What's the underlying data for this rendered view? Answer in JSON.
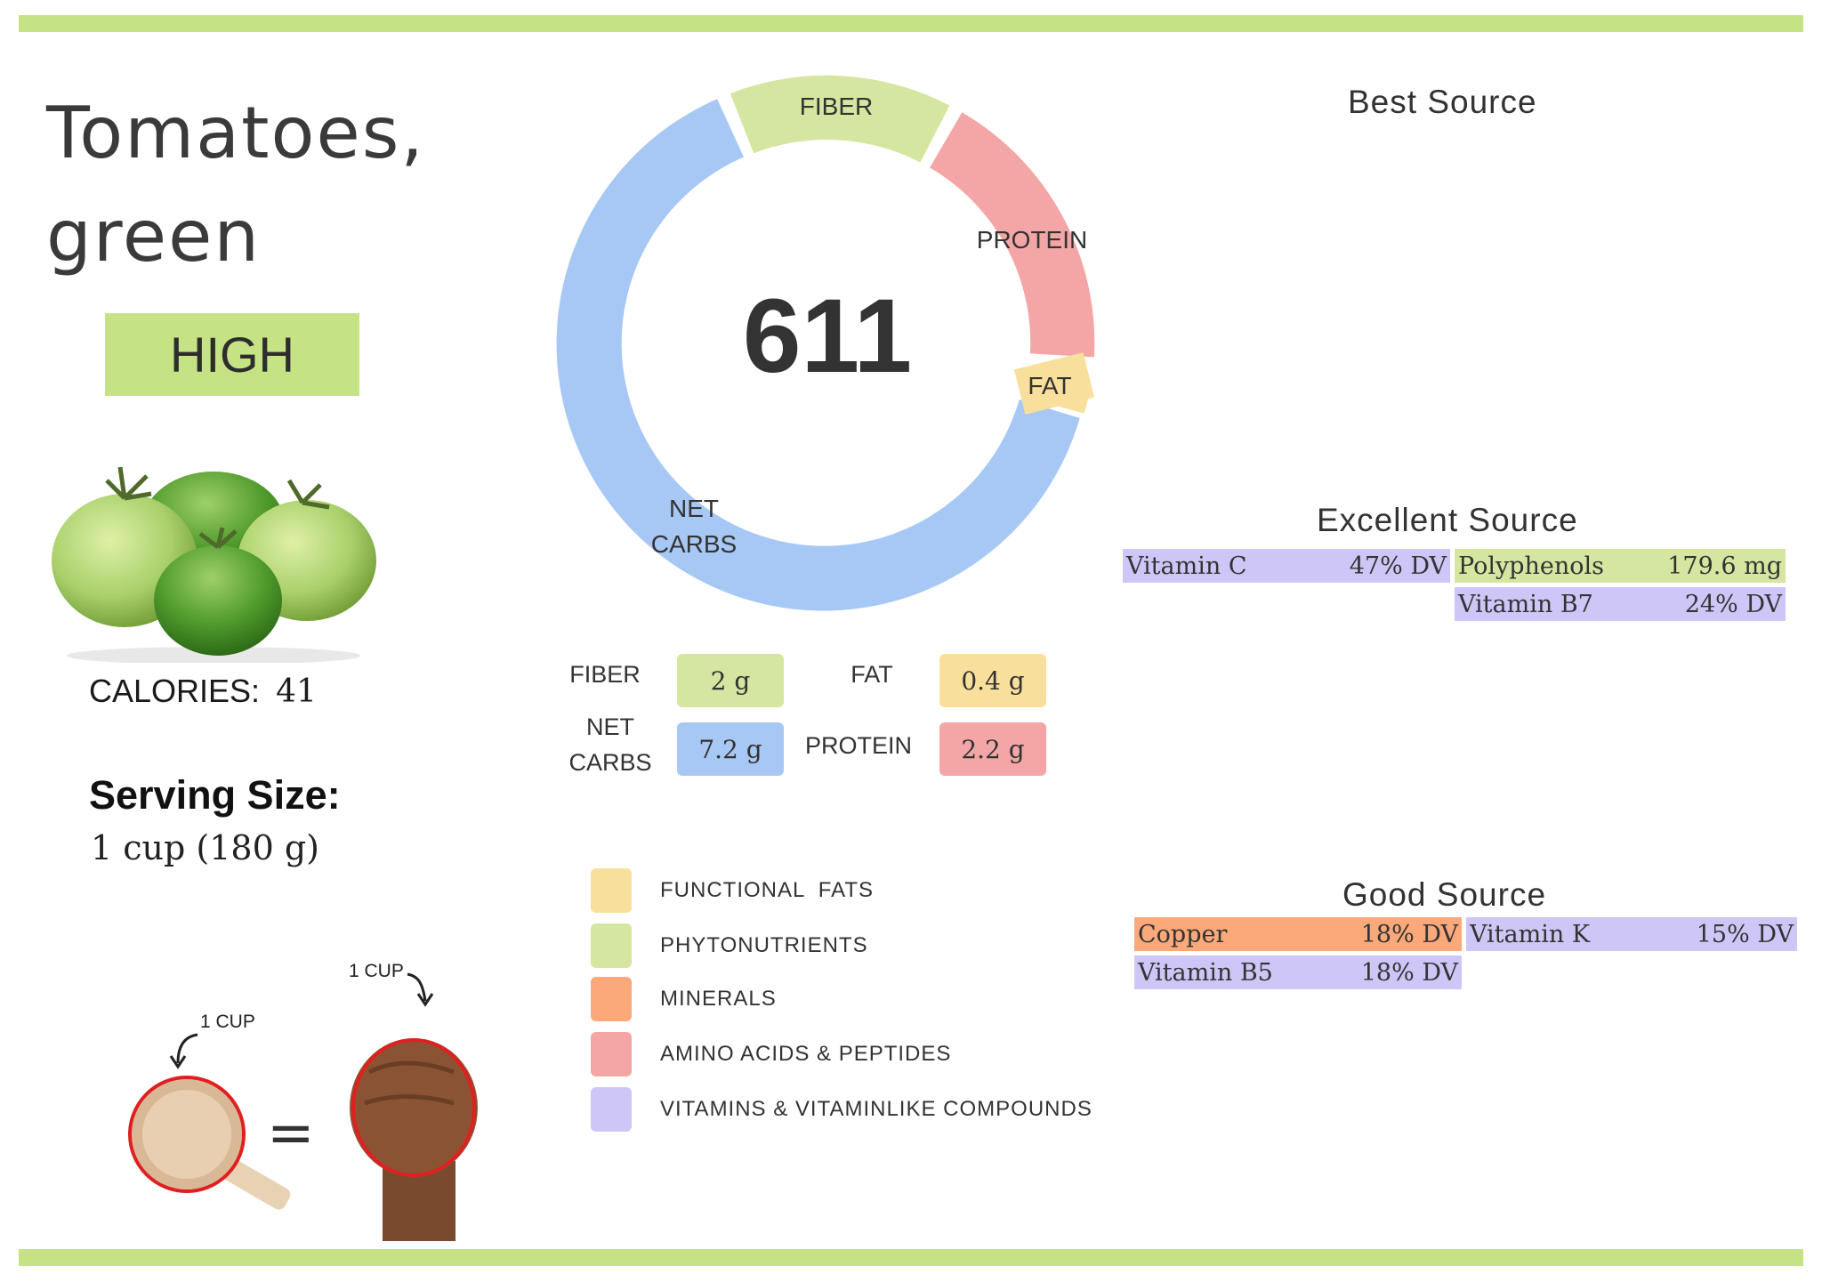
{
  "food": {
    "title_line1": "Tomatoes,",
    "title_line2": "green",
    "rating": "HIGH",
    "calories_label": "CALORIES:",
    "calories_value": "41",
    "serving_title": "Serving Size:",
    "serving_value": "1 cup (180 g)",
    "cup_label_left": "1 CUP",
    "cup_label_right": "1 CUP",
    "equals": "="
  },
  "donut": {
    "score": "611",
    "labels": {
      "fiber": "FIBER",
      "protein": "PROTEIN",
      "fat": "FAT",
      "net_carbs_line1": "NET",
      "net_carbs_line2": "CARBS"
    }
  },
  "macros": {
    "fiber_label": "FIBER",
    "fiber_value": "2 g",
    "fat_label": "FAT",
    "fat_value": "0.4 g",
    "net_carbs_label_line1": "NET",
    "net_carbs_label_line2": "CARBS",
    "net_carbs_value": "7.2 g",
    "protein_label": "PROTEIN",
    "protein_value": "2.2 g"
  },
  "legend": [
    {
      "label": "FUNCTIONAL  FATS",
      "color": "#f9df9c"
    },
    {
      "label": "PHYTONUTRIENTS",
      "color": "#d5e6a1"
    },
    {
      "label": "MINERALS",
      "color": "#fba87a"
    },
    {
      "label": "AMINO ACIDS & PEPTIDES",
      "color": "#f3a6a5"
    },
    {
      "label": "VITAMINS & VITAMINLIKE COMPOUNDS",
      "color": "#cec6f6"
    }
  ],
  "sources": {
    "best_heading": "Best Source",
    "excellent_heading": "Excellent Source",
    "good_heading": "Good Source",
    "excellent": [
      {
        "name": "Vitamin C",
        "value": "47% DV",
        "color": "#cec6f6"
      },
      {
        "name": "Polyphenols",
        "value": "179.6 mg",
        "color": "#d5e6a1"
      },
      {
        "name": "Vitamin B7",
        "value": "24% DV",
        "color": "#cec6f6"
      }
    ],
    "good": [
      {
        "name": "Copper",
        "value": "18% DV",
        "color": "#fba87a"
      },
      {
        "name": "Vitamin K",
        "value": "15% DV",
        "color": "#cec6f6"
      },
      {
        "name": "Vitamin B5",
        "value": "18% DV",
        "color": "#cec6f6"
      }
    ]
  },
  "colors": {
    "accent_green": "#c5e384",
    "net_carbs": "#a7c8f5",
    "fiber": "#d5e6a1",
    "protein": "#f3a6a5",
    "fat": "#f9df9c"
  }
}
